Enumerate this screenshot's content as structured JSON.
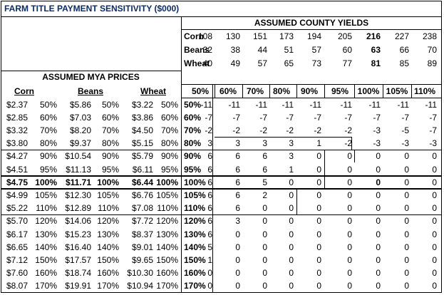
{
  "title": "FARM TITLE PAYMENT SENSITIVITY ($000)",
  "yields": {
    "header": "ASSUMED COUNTY YIELDS",
    "rows": [
      {
        "crop": "Corn",
        "values": [
          "108",
          "130",
          "151",
          "173",
          "194",
          "205",
          "216",
          "227",
          "238"
        ]
      },
      {
        "crop": "Beans",
        "values": [
          "32",
          "38",
          "44",
          "51",
          "57",
          "60",
          "63",
          "66",
          "70"
        ]
      },
      {
        "crop": "Wheat",
        "values": [
          "40",
          "49",
          "57",
          "65",
          "73",
          "77",
          "81",
          "85",
          "89"
        ]
      }
    ]
  },
  "prices": {
    "header": "ASSUMED MYA PRICES",
    "col_labels": [
      "Corn",
      "Beans",
      "Wheat"
    ]
  },
  "matrix": {
    "col_headers": [
      "50%",
      "60%",
      "70%",
      "80%",
      "90%",
      "95%",
      "100%",
      "105%",
      "110%"
    ],
    "rows": [
      {
        "corn": "$2.37",
        "cp": "50%",
        "beans": "$5.86",
        "bp": "50%",
        "wheat": "$3.22",
        "wp": "50%",
        "label": "50%",
        "values": [
          "-11",
          "-11",
          "-11",
          "-11",
          "-11",
          "-11",
          "-11",
          "-11",
          "-11"
        ]
      },
      {
        "corn": "$2.85",
        "cp": "60%",
        "beans": "$7.03",
        "bp": "60%",
        "wheat": "$3.86",
        "wp": "60%",
        "label": "60%",
        "values": [
          "-7",
          "-7",
          "-7",
          "-7",
          "-7",
          "-7",
          "-7",
          "-7",
          "-7"
        ]
      },
      {
        "corn": "$3.32",
        "cp": "70%",
        "beans": "$8.20",
        "bp": "70%",
        "wheat": "$4.50",
        "wp": "70%",
        "label": "70%",
        "values": [
          "-2",
          "-2",
          "-2",
          "-2",
          "-2",
          "-2",
          "-3",
          "-5",
          "-7"
        ]
      },
      {
        "corn": "$3.80",
        "cp": "80%",
        "beans": "$9.37",
        "bp": "80%",
        "wheat": "$5.15",
        "wp": "80%",
        "label": "80%",
        "values": [
          "3",
          "3",
          "3",
          "3",
          "1",
          "-2",
          "-3",
          "-3",
          "-3"
        ]
      },
      {
        "corn": "$4.27",
        "cp": "90%",
        "beans": "$10.54",
        "bp": "90%",
        "wheat": "$5.79",
        "wp": "90%",
        "label": "90%",
        "values": [
          "6",
          "6",
          "6",
          "3",
          "0",
          "0",
          "0",
          "0",
          "0"
        ]
      },
      {
        "corn": "$4.51",
        "cp": "95%",
        "beans": "$11.13",
        "bp": "95%",
        "wheat": "$6.11",
        "wp": "95%",
        "label": "95%",
        "values": [
          "6",
          "6",
          "6",
          "1",
          "0",
          "0",
          "0",
          "0",
          "0"
        ]
      },
      {
        "corn": "$4.75",
        "cp": "100%",
        "beans": "$11.71",
        "bp": "100%",
        "wheat": "$6.44",
        "wp": "100%",
        "label": "100%",
        "values": [
          "6",
          "6",
          "5",
          "0",
          "0",
          "0",
          "0",
          "0",
          "0"
        ]
      },
      {
        "corn": "$4.99",
        "cp": "105%",
        "beans": "$12.30",
        "bp": "105%",
        "wheat": "$6.76",
        "wp": "105%",
        "label": "105%",
        "values": [
          "6",
          "6",
          "2",
          "0",
          "0",
          "0",
          "0",
          "0",
          "0"
        ]
      },
      {
        "corn": "$5.22",
        "cp": "110%",
        "beans": "$12.89",
        "bp": "110%",
        "wheat": "$7.08",
        "wp": "110%",
        "label": "110%",
        "values": [
          "6",
          "6",
          "0",
          "0",
          "0",
          "0",
          "0",
          "0",
          "0"
        ]
      },
      {
        "corn": "$5.70",
        "cp": "120%",
        "beans": "$14.06",
        "bp": "120%",
        "wheat": "$7.72",
        "wp": "120%",
        "label": "120%",
        "values": [
          "6",
          "3",
          "0",
          "0",
          "0",
          "0",
          "0",
          "0",
          "0"
        ]
      },
      {
        "corn": "$6.17",
        "cp": "130%",
        "beans": "$15.23",
        "bp": "130%",
        "wheat": "$8.37",
        "wp": "130%",
        "label": "130%",
        "values": [
          "6",
          "0",
          "0",
          "0",
          "0",
          "0",
          "0",
          "0",
          "0"
        ]
      },
      {
        "corn": "$6.65",
        "cp": "140%",
        "beans": "$16.40",
        "bp": "140%",
        "wheat": "$9.01",
        "wp": "140%",
        "label": "140%",
        "values": [
          "5",
          "0",
          "0",
          "0",
          "0",
          "0",
          "0",
          "0",
          "0"
        ]
      },
      {
        "corn": "$7.12",
        "cp": "150%",
        "beans": "$17.57",
        "bp": "150%",
        "wheat": "$9.65",
        "wp": "150%",
        "label": "150%",
        "values": [
          "1",
          "0",
          "0",
          "0",
          "0",
          "0",
          "0",
          "0",
          "0"
        ]
      },
      {
        "corn": "$7.60",
        "cp": "160%",
        "beans": "$18.74",
        "bp": "160%",
        "wheat": "$10.30",
        "wp": "160%",
        "label": "160%",
        "values": [
          "0",
          "0",
          "0",
          "0",
          "0",
          "0",
          "0",
          "0",
          "0"
        ]
      },
      {
        "corn": "$8.07",
        "cp": "170%",
        "beans": "$19.91",
        "bp": "170%",
        "wheat": "$10.94",
        "wp": "170%",
        "label": "170%",
        "values": [
          "0",
          "0",
          "0",
          "0",
          "0",
          "0",
          "0",
          "0",
          "0"
        ]
      }
    ]
  },
  "colors": {
    "negative_fill": "#fadbd8",
    "positive_fill": "#e2f5e5",
    "highlight_fill": "#eef0f8",
    "title_color": "#0a2a6b"
  }
}
